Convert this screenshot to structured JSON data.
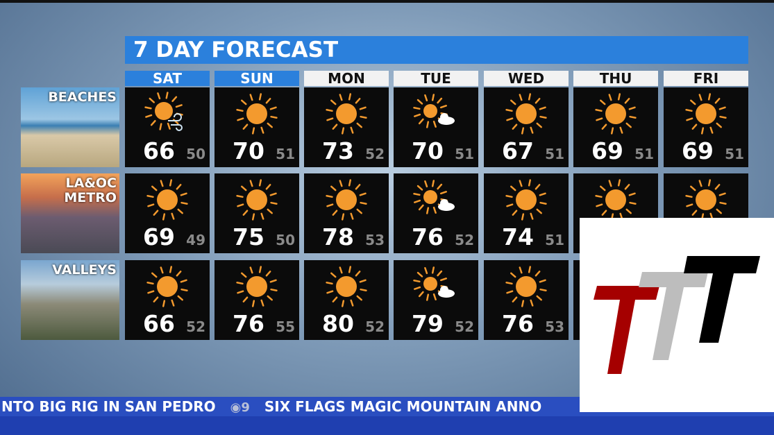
{
  "title": "7 DAY FORECAST",
  "days": [
    {
      "label": "SAT",
      "style": "blue"
    },
    {
      "label": "SUN",
      "style": "blue"
    },
    {
      "label": "MON",
      "style": "white"
    },
    {
      "label": "TUE",
      "style": "white"
    },
    {
      "label": "WED",
      "style": "white"
    },
    {
      "label": "THU",
      "style": "white"
    },
    {
      "label": "FRI",
      "style": "white"
    }
  ],
  "regions": [
    {
      "label": "BEACHES",
      "forecast": [
        {
          "hi": "66",
          "lo": "50",
          "icon": "sun-wind-icon"
        },
        {
          "hi": "70",
          "lo": "51",
          "icon": "sun-icon"
        },
        {
          "hi": "73",
          "lo": "52",
          "icon": "sun-icon"
        },
        {
          "hi": "70",
          "lo": "51",
          "icon": "sun-cloud-icon"
        },
        {
          "hi": "67",
          "lo": "51",
          "icon": "sun-icon"
        },
        {
          "hi": "69",
          "lo": "51",
          "icon": "sun-icon"
        },
        {
          "hi": "69",
          "lo": "51",
          "icon": "sun-icon"
        }
      ]
    },
    {
      "label": "LA&OC\nMETRO",
      "forecast": [
        {
          "hi": "69",
          "lo": "49",
          "icon": "sun-icon"
        },
        {
          "hi": "75",
          "lo": "50",
          "icon": "sun-icon"
        },
        {
          "hi": "78",
          "lo": "53",
          "icon": "sun-icon"
        },
        {
          "hi": "76",
          "lo": "52",
          "icon": "sun-cloud-icon"
        },
        {
          "hi": "74",
          "lo": "51",
          "icon": "sun-icon"
        },
        {
          "hi": null,
          "lo": null,
          "icon": "sun-icon"
        },
        {
          "hi": null,
          "lo": null,
          "icon": "sun-icon"
        }
      ]
    },
    {
      "label": "VALLEYS",
      "forecast": [
        {
          "hi": "66",
          "lo": "52",
          "icon": "sun-icon"
        },
        {
          "hi": "76",
          "lo": "55",
          "icon": "sun-icon"
        },
        {
          "hi": "80",
          "lo": "52",
          "icon": "sun-icon"
        },
        {
          "hi": "79",
          "lo": "52",
          "icon": "sun-cloud-icon"
        },
        {
          "hi": "76",
          "lo": "53",
          "icon": "sun-icon"
        },
        {
          "hi": null,
          "lo": null,
          "icon": "sun-icon"
        },
        {
          "hi": null,
          "lo": null,
          "icon": "sun-icon"
        }
      ]
    }
  ],
  "ticker": {
    "left": "NTO BIG RIG IN SAN PEDRO",
    "logo": "9",
    "right": "SIX FLAGS MAGIC MOUNTAIN ANNO"
  },
  "colors": {
    "title_blue": "#2b80dc",
    "sun": "#f39a2e",
    "ticker_blue": "#2a4ec0",
    "logo_red": "#a50000",
    "logo_gray": "#bdbdbd",
    "logo_black": "#000000"
  }
}
